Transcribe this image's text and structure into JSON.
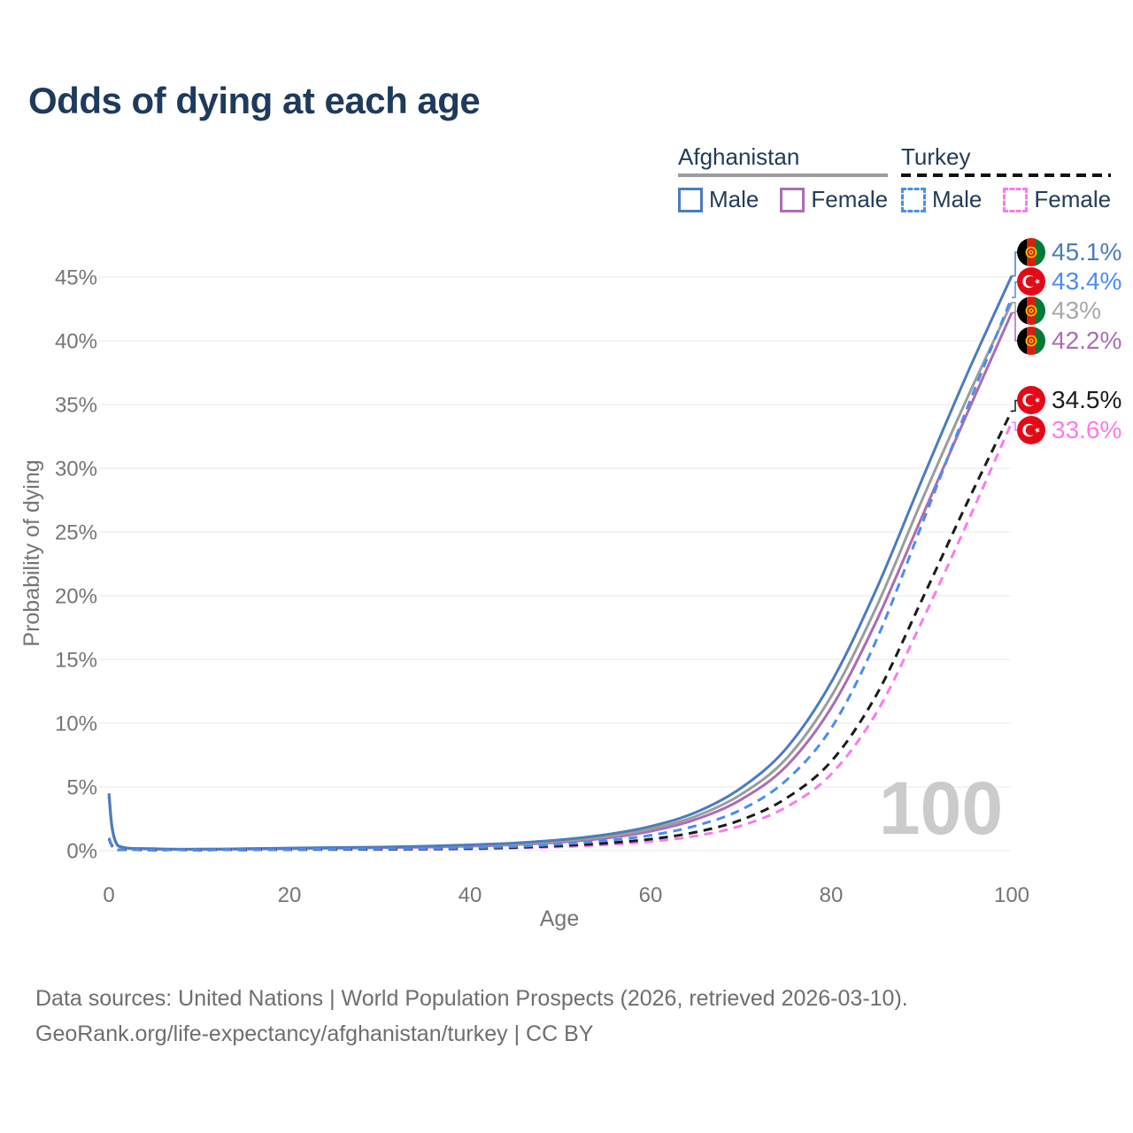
{
  "title": "Odds of dying at each age",
  "legend": {
    "afghanistan": {
      "label": "Afghanistan",
      "male_label": "Male",
      "female_label": "Female"
    },
    "turkey": {
      "label": "Turkey",
      "male_label": "Male",
      "female_label": "Female"
    }
  },
  "watermark_age": "100",
  "footer": {
    "line1": "Data sources: United Nations | World Population Prospects (2026, retrieved 2026-03-10).",
    "line2": "GeoRank.org/life-expectancy/afghanistan/turkey | CC BY"
  },
  "colors": {
    "title_text": "#1e3a5c",
    "legend_text": "#213c5a",
    "axis_text": "#757575",
    "gridline": "#e8e8e8",
    "watermark": "#cbcbcb",
    "footer_text": "#6e6e6e",
    "afghanistan_male": "#4a7cbe",
    "afghanistan_female": "#ab6cb3",
    "afghanistan_total": "#9c9c9c",
    "turkey_male": "#4a8cf2",
    "turkey_female": "#fc7aeb",
    "turkey_total": "#1b1b1b",
    "turkey_flag_red": "#e30a17",
    "afghan_flag_black": "#000000",
    "afghan_flag_red": "#d32011",
    "afghan_flag_green": "#007a36",
    "afghan_flag_gold": "#f8c300"
  },
  "chart_data": {
    "type": "line",
    "title": "Odds of dying at each age",
    "xlabel": "Age",
    "ylabel": "Probability of dying",
    "xlim": [
      0,
      100
    ],
    "ylim": [
      0,
      45
    ],
    "xticks": [
      0,
      20,
      40,
      60,
      80,
      100
    ],
    "yticks": [
      0,
      5,
      10,
      15,
      20,
      25,
      30,
      35,
      40,
      45
    ],
    "ytick_suffix": "%",
    "grid": "horizontal-only",
    "legend_position": "top-right",
    "x_ages": [
      0,
      1,
      5,
      10,
      15,
      20,
      25,
      30,
      35,
      40,
      45,
      50,
      55,
      60,
      65,
      70,
      75,
      80,
      85,
      90,
      95,
      100
    ],
    "series": [
      {
        "id": "af_male",
        "name": "Afghanistan Male",
        "color": "#4a7cbe",
        "dashed": false,
        "flag": "afghanistan",
        "end_label": "45.1%",
        "end_value": 45.1,
        "values": [
          4.5,
          0.4,
          0.15,
          0.12,
          0.15,
          0.2,
          0.24,
          0.28,
          0.35,
          0.45,
          0.6,
          0.85,
          1.25,
          1.9,
          3.0,
          4.9,
          8.0,
          13.2,
          20.5,
          29.0,
          37.3,
          45.1
        ]
      },
      {
        "id": "tr_male",
        "name": "Turkey Male",
        "color": "#4a8cf2",
        "dashed": true,
        "flag": "turkey",
        "end_label": "43.4%",
        "end_value": 43.4,
        "values": [
          1.0,
          0.07,
          0.03,
          0.03,
          0.06,
          0.1,
          0.12,
          0.14,
          0.17,
          0.22,
          0.32,
          0.5,
          0.78,
          1.2,
          1.95,
          3.2,
          5.5,
          9.6,
          16.5,
          25.5,
          34.6,
          43.4
        ]
      },
      {
        "id": "af_total",
        "name": "Afghanistan (both sexes)",
        "color": "#9c9c9c",
        "dashed": false,
        "flag": "afghanistan",
        "end_label": "43%",
        "end_value": 43.0,
        "values": [
          4.35,
          0.38,
          0.13,
          0.11,
          0.13,
          0.17,
          0.21,
          0.25,
          0.31,
          0.4,
          0.53,
          0.75,
          1.1,
          1.7,
          2.7,
          4.4,
          7.2,
          12.1,
          19.1,
          27.4,
          35.4,
          43.0
        ]
      },
      {
        "id": "af_female",
        "name": "Afghanistan Female",
        "color": "#ab6cb3",
        "dashed": false,
        "flag": "afghanistan",
        "end_label": "42.2%",
        "end_value": 42.2,
        "values": [
          4.2,
          0.36,
          0.12,
          0.1,
          0.12,
          0.15,
          0.18,
          0.22,
          0.27,
          0.35,
          0.47,
          0.66,
          0.98,
          1.52,
          2.45,
          4.0,
          6.6,
          11.2,
          18.0,
          26.1,
          34.2,
          42.2
        ]
      },
      {
        "id": "tr_total",
        "name": "Turkey (both sexes)",
        "color": "#1b1b1b",
        "dashed": true,
        "flag": "turkey",
        "end_label": "34.5%",
        "end_value": 34.5,
        "values": [
          0.95,
          0.06,
          0.027,
          0.025,
          0.05,
          0.08,
          0.1,
          0.11,
          0.13,
          0.17,
          0.25,
          0.38,
          0.58,
          0.9,
          1.45,
          2.4,
          4.1,
          7.0,
          12.2,
          19.6,
          27.2,
          34.5
        ]
      },
      {
        "id": "tr_female",
        "name": "Turkey Female",
        "color": "#fc7aeb",
        "dashed": true,
        "flag": "turkey",
        "end_label": "33.6%",
        "end_value": 33.6,
        "values": [
          0.9,
          0.055,
          0.025,
          0.022,
          0.04,
          0.06,
          0.08,
          0.09,
          0.11,
          0.14,
          0.2,
          0.3,
          0.46,
          0.72,
          1.15,
          1.95,
          3.4,
          6.0,
          10.8,
          17.9,
          25.6,
          33.6
        ]
      }
    ]
  }
}
